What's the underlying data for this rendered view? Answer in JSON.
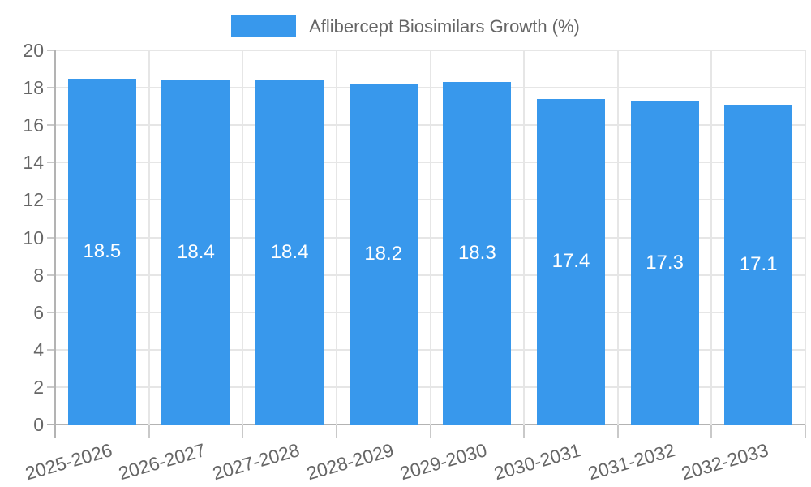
{
  "legend": {
    "label": "Aflibercept Biosimilars Growth (%)"
  },
  "chart_data": {
    "type": "bar",
    "title": "Aflibercept Biosimilars Growth (%)",
    "categories": [
      "2025-2026",
      "2026-2027",
      "2027-2028",
      "2028-2029",
      "2029-2030",
      "2030-2031",
      "2031-2032",
      "2032-2033"
    ],
    "values": [
      18.5,
      18.4,
      18.4,
      18.2,
      18.3,
      17.4,
      17.3,
      17.1
    ],
    "value_label_decimals": 1,
    "xlabel": "",
    "ylabel": "",
    "ylim": [
      0,
      20
    ],
    "ytick_step": 2,
    "grid": true,
    "legend_position": "top",
    "x_label_rotation_deg": -16,
    "colors": {
      "bar": "#3898ec",
      "value_label": "#ffffff",
      "tick_text": "#666666",
      "legend_text": "#666666",
      "gridline": "#e6e6e6",
      "axis_line": "#b3b3b3",
      "tick_mark": "#c9c9c9",
      "background": "#ffffff"
    }
  }
}
